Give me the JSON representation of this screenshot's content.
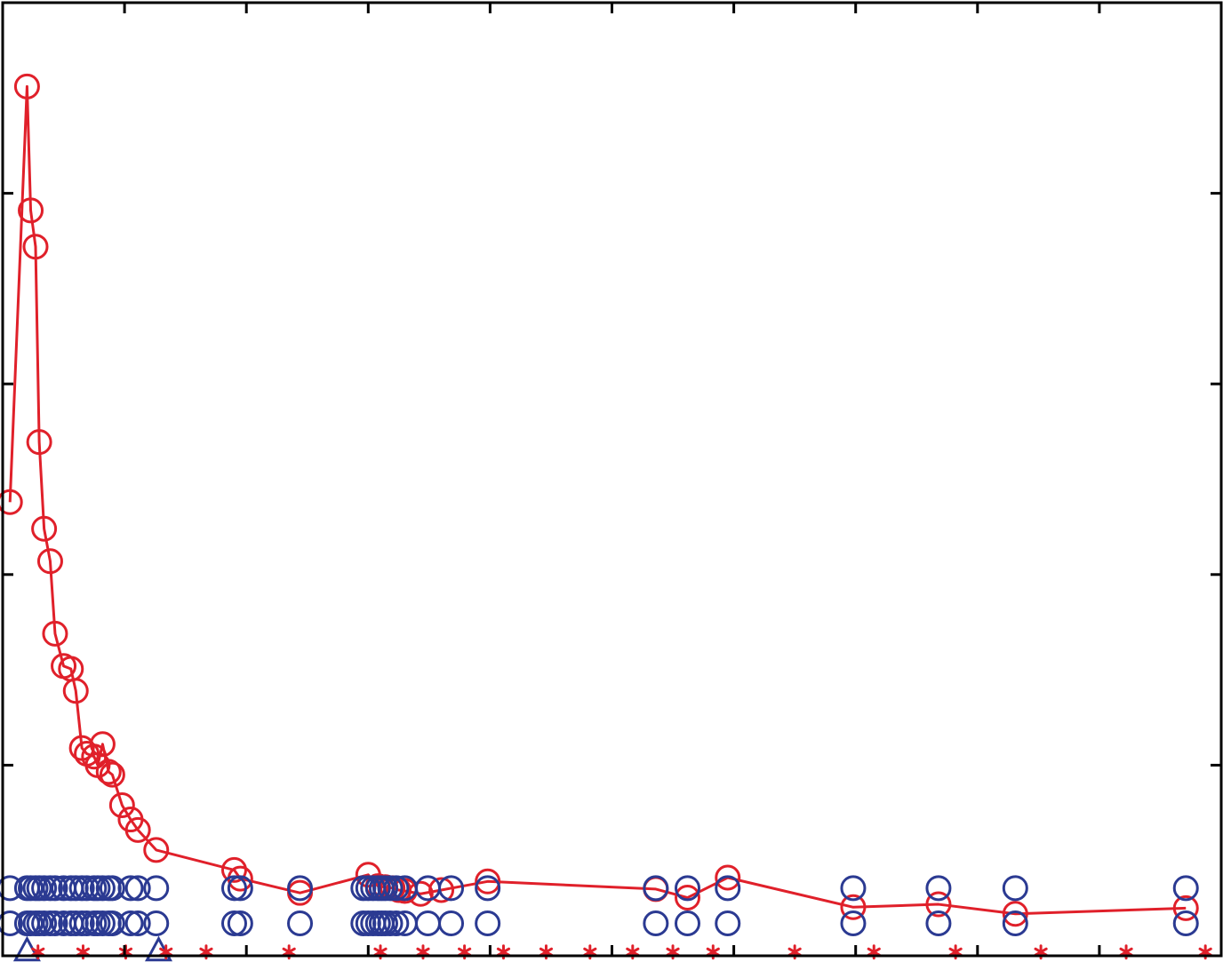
{
  "chart_data": {
    "type": "line",
    "title": "",
    "xlabel": "",
    "ylabel": "",
    "xlim": [
      0,
      100
    ],
    "ylim": [
      0,
      100
    ],
    "grid": false,
    "x_ticks": [
      10,
      20,
      30,
      40,
      50,
      60,
      70,
      80,
      90
    ],
    "y_ticks": [
      20,
      40,
      60,
      80
    ],
    "colors": {
      "axis": "#000000",
      "red": "#e0202a",
      "blue": "#2b3a92"
    },
    "series": [
      {
        "type": "line",
        "color": "#e0202a",
        "marker": "circle",
        "x": [
          0.6,
          2.0,
          2.3,
          2.7,
          3.0,
          3.4,
          3.9,
          4.3,
          5.0,
          5.6,
          6.0,
          6.5,
          6.9,
          7.5,
          7.8,
          8.2,
          8.7,
          9.0,
          9.8,
          10.5,
          11.1,
          12.6,
          19.0,
          19.5,
          24.4,
          30.0,
          30.8,
          31.4,
          32.0,
          32.5,
          33.0,
          34.3,
          36.0,
          39.8,
          53.6,
          56.2,
          59.5,
          69.8,
          76.8,
          83.1,
          97.1
        ],
        "y": [
          47.6,
          91.2,
          78.2,
          74.4,
          53.9,
          44.8,
          41.4,
          33.8,
          30.4,
          30.1,
          27.8,
          21.8,
          21.2,
          20.9,
          20.0,
          22.2,
          19.3,
          19.0,
          15.8,
          14.3,
          13.2,
          11.1,
          9.0,
          8.1,
          6.6,
          8.5,
          7.3,
          7.2,
          7.1,
          6.9,
          6.8,
          6.5,
          6.9,
          7.8,
          7.0,
          6.1,
          8.2,
          5.1,
          5.4,
          4.4,
          5.0
        ]
      },
      {
        "type": "scatter",
        "color": "#2b3a92",
        "marker": "circle",
        "x": [
          0.6,
          2.0,
          2.3,
          2.7,
          3.0,
          3.4,
          3.9,
          4.3,
          5.0,
          5.6,
          6.0,
          6.5,
          6.9,
          7.5,
          7.8,
          8.2,
          8.7,
          9.0,
          10.5,
          11.1,
          12.6,
          19.0,
          19.5,
          24.4,
          29.6,
          30.0,
          30.4,
          30.8,
          31.1,
          31.4,
          31.8,
          32.3,
          33.0,
          34.9,
          36.8,
          39.8,
          53.6,
          56.2,
          59.5,
          69.8,
          76.8,
          83.1,
          97.1,
          0.6,
          2.0,
          2.3,
          2.7,
          3.0,
          3.4,
          3.9,
          4.3,
          5.0,
          5.6,
          6.0,
          6.5,
          6.9,
          7.5,
          7.8,
          8.2,
          8.7,
          9.0,
          10.5,
          11.1,
          12.6,
          19.0,
          19.5,
          24.4,
          29.6,
          30.0,
          30.4,
          30.8,
          31.1,
          31.4,
          31.8,
          32.3,
          33.0,
          34.9,
          36.8,
          39.8,
          53.6,
          56.2,
          59.5,
          69.8,
          76.8,
          83.1,
          97.1
        ],
        "y": [
          7.1,
          7.1,
          7.1,
          7.1,
          7.1,
          7.1,
          7.1,
          7.1,
          7.1,
          7.1,
          7.1,
          7.1,
          7.1,
          7.1,
          7.1,
          7.1,
          7.1,
          7.1,
          7.1,
          7.1,
          7.1,
          7.1,
          7.1,
          7.1,
          7.1,
          7.1,
          7.1,
          7.1,
          7.1,
          7.1,
          7.1,
          7.1,
          7.1,
          7.1,
          7.1,
          7.1,
          7.1,
          7.1,
          7.1,
          7.1,
          7.1,
          7.1,
          7.1,
          3.4,
          3.4,
          3.4,
          3.4,
          3.4,
          3.4,
          3.4,
          3.4,
          3.4,
          3.4,
          3.4,
          3.4,
          3.4,
          3.4,
          3.4,
          3.4,
          3.4,
          3.4,
          3.4,
          3.4,
          3.4,
          3.4,
          3.4,
          3.4,
          3.4,
          3.4,
          3.4,
          3.4,
          3.4,
          3.4,
          3.4,
          3.4,
          3.4,
          3.4,
          3.4,
          3.4,
          3.4,
          3.4,
          3.4,
          3.4,
          3.4,
          3.4,
          3.4
        ]
      },
      {
        "type": "scatter",
        "color": "#2b3a92",
        "marker": "triangle",
        "x": [
          2.0,
          12.8
        ],
        "y": [
          0.4,
          0.4
        ]
      },
      {
        "type": "scatter",
        "color": "#e0202a",
        "marker": "asterisk",
        "x": [
          2.9,
          6.6,
          10.1,
          13.4,
          16.7,
          23.5,
          31.0,
          34.5,
          37.9,
          41.1,
          44.6,
          48.2,
          51.7,
          55.0,
          58.3,
          65.0,
          71.5,
          78.2,
          85.2,
          92.2,
          98.7
        ],
        "y": [
          0.4,
          0.4,
          0.4,
          0.4,
          0.4,
          0.4,
          0.4,
          0.4,
          0.4,
          0.4,
          0.4,
          0.4,
          0.4,
          0.4,
          0.4,
          0.4,
          0.4,
          0.4,
          0.4,
          0.4,
          0.4
        ]
      }
    ]
  }
}
